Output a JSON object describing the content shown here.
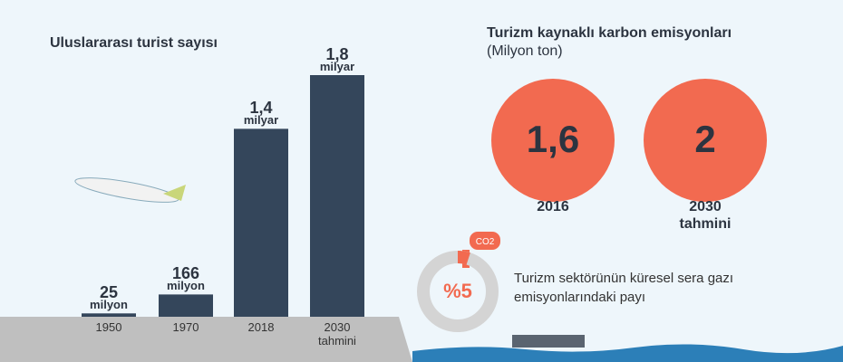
{
  "chart_data": [
    {
      "type": "bar",
      "title": "Uluslararası turist sayısı",
      "categories": [
        "1950",
        "1970",
        "2018",
        "2030 tahmini"
      ],
      "values": [
        25,
        166,
        1400,
        1800
      ],
      "value_labels": [
        "25 milyon",
        "166 milyon",
        "1,4 milyar",
        "1,8 milyar"
      ],
      "color": "#34465b"
    },
    {
      "type": "circles",
      "title": "Turizm kaynaklı karbon emisyonları",
      "subtitle": "(Milyon ton)",
      "categories": [
        "2016",
        "2030 tahmini"
      ],
      "values": [
        1.6,
        2
      ],
      "value_labels": [
        "1,6",
        "2"
      ],
      "color": "#f26a50"
    },
    {
      "type": "donut",
      "label": "Turizm sektörünün küresel sera gazı emisyonlarındaki payı",
      "values": [
        5
      ],
      "value_labels": [
        "%5"
      ],
      "color": "#f26a50",
      "rest_color": "#d4d4d4"
    }
  ]
}
